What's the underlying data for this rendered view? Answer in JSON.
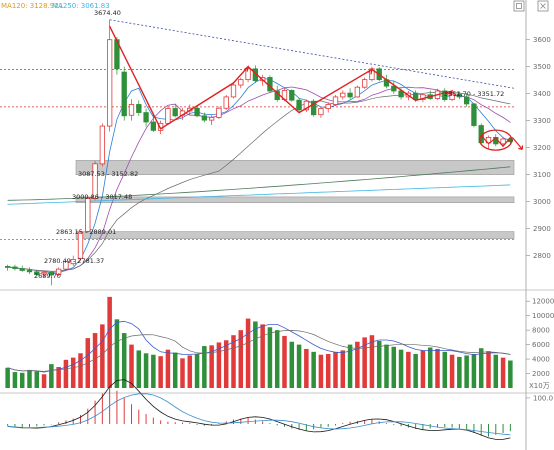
{
  "legend": {
    "ma120_label": "MA120: 3128.921",
    "ma250_label": "MA250: 3061.83"
  },
  "colors": {
    "up": "#e03a3a",
    "down": "#2f8f3a",
    "ma120": "#d99a2a",
    "ma250": "#41b6e6",
    "ma_long_dark": "#4e7a5b",
    "ma5": "#2a7fd8",
    "ma10": "#9e4fb1",
    "ma20": "#6b6b6b",
    "trend_red": "#e02020",
    "trend_blue": "#3c4ba8",
    "dashed_red": "#d03030",
    "gray_band": "#c8c8c8"
  },
  "price_axis": {
    "ticks": [
      3600,
      3500,
      3400,
      3300,
      3200,
      3100,
      3000,
      2900,
      2800
    ],
    "labels": [
      "3600",
      "3500",
      "3400",
      "3300",
      "3200",
      "3100",
      "3000",
      "2900",
      "2800"
    ]
  },
  "volume_axis": {
    "labels": [
      "12000",
      "10000",
      "8000",
      "6000",
      "4000",
      "2000"
    ],
    "ticks": [
      12000,
      10000,
      8000,
      6000,
      4000,
      2000
    ],
    "multiplier": "X10万"
  },
  "macd_axis": {
    "labels": [
      "100.0"
    ]
  },
  "annotations": {
    "high": "3674.40",
    "a1": "3351.70 - 3351.72",
    "a2": "3087.53 - 3152.82",
    "a3": "3000.86 - 3017.48",
    "a4": "2863.15 - 2889.01",
    "a5": "2780.49 - 2781.37",
    "low": "2689.70"
  },
  "chart_data": {
    "type": "candlestick",
    "price_range": [
      2680,
      3710
    ],
    "ma120": 3128.921,
    "ma250": 3061.83,
    "candles": [
      [
        2760,
        2766,
        2744,
        2758
      ],
      [
        2758,
        2766,
        2745,
        2752
      ],
      [
        2752,
        2763,
        2740,
        2745
      ],
      [
        2745,
        2757,
        2732,
        2740
      ],
      [
        2740,
        2748,
        2725,
        2730
      ],
      [
        2732,
        2742,
        2720,
        2738
      ],
      [
        2738,
        2744,
        2689.7,
        2728
      ],
      [
        2730,
        2756,
        2724,
        2750
      ],
      [
        2750,
        2782,
        2745,
        2778
      ],
      [
        2770,
        2800,
        2762,
        2786
      ],
      [
        2790,
        2892,
        2786,
        2887
      ],
      [
        2890,
        3020,
        2884,
        3012
      ],
      [
        3012,
        3150,
        3005,
        3140
      ],
      [
        3140,
        3290,
        3130,
        3280
      ],
      [
        3280,
        3674.4,
        3260,
        3600
      ],
      [
        3600,
        3610,
        3470,
        3492
      ],
      [
        3480,
        3500,
        3300,
        3318
      ],
      [
        3320,
        3380,
        3300,
        3360
      ],
      [
        3360,
        3375,
        3318,
        3330
      ],
      [
        3330,
        3345,
        3278,
        3295
      ],
      [
        3295,
        3320,
        3258,
        3264
      ],
      [
        3264,
        3300,
        3250,
        3290
      ],
      [
        3290,
        3355,
        3285,
        3345
      ],
      [
        3345,
        3362,
        3312,
        3318
      ],
      [
        3320,
        3348,
        3302,
        3336
      ],
      [
        3336,
        3360,
        3320,
        3346
      ],
      [
        3346,
        3352,
        3312,
        3318
      ],
      [
        3318,
        3330,
        3294,
        3302
      ],
      [
        3302,
        3320,
        3284,
        3312
      ],
      [
        3312,
        3352,
        3306,
        3346
      ],
      [
        3346,
        3395,
        3340,
        3388
      ],
      [
        3388,
        3440,
        3382,
        3432
      ],
      [
        3432,
        3460,
        3420,
        3452
      ],
      [
        3452,
        3500,
        3442,
        3492
      ],
      [
        3492,
        3505,
        3440,
        3448
      ],
      [
        3448,
        3470,
        3430,
        3460
      ],
      [
        3460,
        3468,
        3402,
        3410
      ],
      [
        3410,
        3430,
        3370,
        3378
      ],
      [
        3378,
        3420,
        3372,
        3412
      ],
      [
        3412,
        3416,
        3370,
        3376
      ],
      [
        3376,
        3384,
        3334,
        3340
      ],
      [
        3340,
        3378,
        3332,
        3372
      ],
      [
        3372,
        3380,
        3315,
        3322
      ],
      [
        3322,
        3352,
        3310,
        3345
      ],
      [
        3345,
        3368,
        3330,
        3360
      ],
      [
        3360,
        3395,
        3355,
        3388
      ],
      [
        3388,
        3412,
        3378,
        3402
      ],
      [
        3402,
        3420,
        3380,
        3388
      ],
      [
        3388,
        3430,
        3385,
        3424
      ],
      [
        3424,
        3460,
        3418,
        3452
      ],
      [
        3452,
        3500,
        3445,
        3492
      ],
      [
        3492,
        3498,
        3446,
        3452
      ],
      [
        3452,
        3470,
        3420,
        3428
      ],
      [
        3428,
        3448,
        3400,
        3410
      ],
      [
        3410,
        3420,
        3378,
        3388
      ],
      [
        3388,
        3410,
        3375,
        3402
      ],
      [
        3402,
        3412,
        3370,
        3378
      ],
      [
        3378,
        3402,
        3368,
        3396
      ],
      [
        3396,
        3412,
        3376,
        3382
      ],
      [
        3382,
        3418,
        3376,
        3410
      ],
      [
        3410,
        3420,
        3370,
        3378
      ],
      [
        3378,
        3405,
        3372,
        3398
      ],
      [
        3398,
        3408,
        3380,
        3388
      ],
      [
        3388,
        3402,
        3351.7,
        3362
      ],
      [
        3362,
        3366,
        3275,
        3282
      ],
      [
        3282,
        3290,
        3210,
        3218
      ],
      [
        3218,
        3245,
        3196,
        3238
      ],
      [
        3238,
        3250,
        3205,
        3214
      ],
      [
        3214,
        3240,
        3208,
        3232
      ],
      [
        3232,
        3240,
        3210,
        3222
      ]
    ],
    "volumes": [
      2800,
      2200,
      2100,
      2500,
      2300,
      1900,
      3300,
      2900,
      3900,
      4200,
      4800,
      6900,
      7600,
      8800,
      12600,
      9500,
      7600,
      6000,
      5200,
      4800,
      4600,
      4400,
      5300,
      4900,
      4100,
      4500,
      4700,
      5800,
      5900,
      6300,
      6600,
      7300,
      8000,
      9600,
      9200,
      8800,
      8400,
      8000,
      7200,
      6400,
      6000,
      5400,
      5000,
      4600,
      4700,
      5000,
      5200,
      6000,
      6400,
      7000,
      7300,
      6500,
      6000,
      5700,
      5300,
      5000,
      4700,
      5200,
      5600,
      5400,
      5000,
      4600,
      4300,
      4500,
      4700,
      5500,
      5100,
      4600,
      4200,
      3800
    ],
    "macd_hist": [
      -4,
      -6,
      -8,
      -7,
      -5,
      -3,
      -1,
      4,
      8,
      12,
      20,
      34,
      52,
      68,
      82,
      74,
      58,
      44,
      32,
      22,
      14,
      8,
      5,
      4,
      3,
      2,
      -2,
      -4,
      -3,
      2,
      6,
      10,
      12,
      14,
      10,
      6,
      2,
      -3,
      -6,
      -10,
      -13,
      -15,
      -12,
      -9,
      -6,
      -3,
      2,
      5,
      7,
      9,
      10,
      6,
      2,
      -2,
      -5,
      -8,
      -11,
      -12,
      -10,
      -8,
      -7,
      -8,
      -10,
      -14,
      -20,
      -26,
      -28,
      -24,
      -20,
      -16
    ],
    "reference_lines_dashed_red": [
      3490,
      3351,
      2860
    ],
    "gray_bands": [
      [
        3100,
        3152.82
      ],
      [
        2996,
        3017.48
      ],
      [
        2863,
        2889
      ]
    ]
  }
}
